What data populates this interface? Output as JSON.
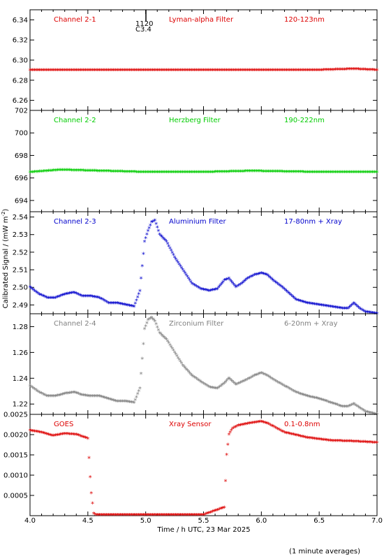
{
  "x_axis_label": "Time / h UTC, 23 Mar 2025",
  "y_axis_label": "Calibrated Signal / (mW m",
  "y_axis_label_sup": "-2",
  "y_axis_label_close": ")",
  "footnote": "(1 minute averages)",
  "event_marker": {
    "time_label": "1120",
    "class_label": "C3.4"
  },
  "chart_data": [
    {
      "type": "scatter",
      "title_left": "Channel 2-1",
      "title_mid": "Lyman-alpha Filter",
      "title_right": "120-123nm",
      "color": "#dd0000",
      "xlim": [
        4.0,
        7.0
      ],
      "ylim": [
        6.25,
        6.35
      ],
      "yticks": [
        "6.26",
        "6.28",
        "6.30",
        "6.32",
        "6.34"
      ],
      "x": [
        4.0,
        5.0,
        5.5,
        6.0,
        6.5,
        6.8,
        7.0
      ],
      "y": [
        6.29,
        6.29,
        6.29,
        6.29,
        6.29,
        6.291,
        6.29
      ]
    },
    {
      "type": "scatter",
      "title_left": "Channel 2-2",
      "title_mid": "Herzberg Filter",
      "title_right": "190-222nm",
      "color": "#00cc00",
      "xlim": [
        4.0,
        7.0
      ],
      "ylim": [
        693.0,
        702.0
      ],
      "yticks": [
        "694",
        "696",
        "698",
        "700",
        "702"
      ],
      "x": [
        4.0,
        4.27,
        5.0,
        5.5,
        5.92,
        6.5,
        7.0
      ],
      "y": [
        696.5,
        696.7,
        696.5,
        696.5,
        696.6,
        696.5,
        696.5
      ]
    },
    {
      "type": "scatter",
      "title_left": "Channel 2-3",
      "title_mid": "Aluminium Filter",
      "title_right": "17-80nm + Xray",
      "color": "#0000cc",
      "xlim": [
        4.0,
        7.0
      ],
      "ylim": [
        2.485,
        2.543
      ],
      "yticks": [
        "2.49",
        "2.50",
        "2.51",
        "2.52",
        "2.53",
        "2.54"
      ],
      "x": [
        4.0,
        4.08,
        4.15,
        4.22,
        4.3,
        4.38,
        4.45,
        4.52,
        4.6,
        4.68,
        4.75,
        4.83,
        4.9,
        4.95,
        4.99,
        5.02,
        5.05,
        5.08,
        5.12,
        5.18,
        5.25,
        5.32,
        5.4,
        5.48,
        5.55,
        5.62,
        5.68,
        5.72,
        5.78,
        5.83,
        5.88,
        5.94,
        6.0,
        6.05,
        6.12,
        6.2,
        6.3,
        6.4,
        6.5,
        6.6,
        6.7,
        6.75,
        6.8,
        6.85,
        6.9,
        7.0
      ],
      "y": [
        2.5,
        2.496,
        2.494,
        2.494,
        2.496,
        2.497,
        2.495,
        2.495,
        2.494,
        2.491,
        2.491,
        2.49,
        2.489,
        2.498,
        2.526,
        2.532,
        2.537,
        2.538,
        2.53,
        2.526,
        2.517,
        2.51,
        2.502,
        2.499,
        2.498,
        2.499,
        2.504,
        2.505,
        2.5,
        2.502,
        2.505,
        2.507,
        2.508,
        2.507,
        2.503,
        2.499,
        2.493,
        2.491,
        2.49,
        2.489,
        2.488,
        2.488,
        2.491,
        2.488,
        2.486,
        2.485
      ]
    },
    {
      "type": "scatter",
      "title_left": "Channel 2-4",
      "title_mid": "Zirconium Filter",
      "title_right": "6-20nm + Xray",
      "color": "#808080",
      "xlim": [
        4.0,
        7.0
      ],
      "ylim": [
        1.212,
        1.29
      ],
      "yticks": [
        "1.22",
        "1.24",
        "1.26",
        "1.28"
      ],
      "x": [
        4.0,
        4.08,
        4.15,
        4.22,
        4.3,
        4.38,
        4.45,
        4.52,
        4.6,
        4.68,
        4.75,
        4.83,
        4.9,
        4.95,
        4.99,
        5.02,
        5.05,
        5.08,
        5.12,
        5.18,
        5.25,
        5.32,
        5.4,
        5.48,
        5.55,
        5.62,
        5.68,
        5.72,
        5.78,
        5.83,
        5.88,
        5.94,
        6.0,
        6.05,
        6.12,
        6.2,
        6.3,
        6.4,
        6.5,
        6.6,
        6.7,
        6.75,
        6.8,
        6.85,
        6.9,
        7.0
      ],
      "y": [
        1.234,
        1.229,
        1.226,
        1.226,
        1.228,
        1.229,
        1.227,
        1.226,
        1.226,
        1.224,
        1.222,
        1.222,
        1.221,
        1.232,
        1.278,
        1.285,
        1.287,
        1.284,
        1.275,
        1.27,
        1.26,
        1.25,
        1.242,
        1.237,
        1.233,
        1.232,
        1.236,
        1.24,
        1.235,
        1.237,
        1.239,
        1.242,
        1.244,
        1.242,
        1.238,
        1.234,
        1.229,
        1.226,
        1.224,
        1.221,
        1.218,
        1.218,
        1.22,
        1.217,
        1.214,
        1.212
      ]
    },
    {
      "type": "scatter",
      "title_left": "GOES",
      "title_mid": "Xray Sensor",
      "title_right": "0.1-0.8nm",
      "color": "#dd0000",
      "xlim": [
        4.0,
        7.0
      ],
      "ylim": [
        0.0,
        0.0025
      ],
      "yticks": [
        "0.0005",
        "0.0010",
        "0.0015",
        "0.0020",
        "0.0025"
      ],
      "x": [
        4.0,
        4.1,
        4.2,
        4.3,
        4.4,
        4.5,
        4.52,
        4.53,
        4.55,
        4.57,
        4.6,
        5.0,
        5.5,
        5.68,
        5.7,
        5.72,
        5.75,
        5.8,
        5.9,
        6.0,
        6.05,
        6.2,
        6.4,
        6.6,
        6.8,
        7.0
      ],
      "y": [
        0.0021,
        0.00205,
        0.00197,
        0.00202,
        0.002,
        0.0019,
        0.00095,
        0.00055,
        5e-05,
        2e-05,
        2e-05,
        2e-05,
        2e-05,
        0.0002,
        0.0015,
        0.002,
        0.00215,
        0.00222,
        0.00228,
        0.00232,
        0.00228,
        0.00205,
        0.00192,
        0.00185,
        0.00183,
        0.0018
      ]
    }
  ],
  "x_ticks": [
    "4.0",
    "4.5",
    "5.0",
    "5.5",
    "6.0",
    "6.5",
    "7.0"
  ]
}
